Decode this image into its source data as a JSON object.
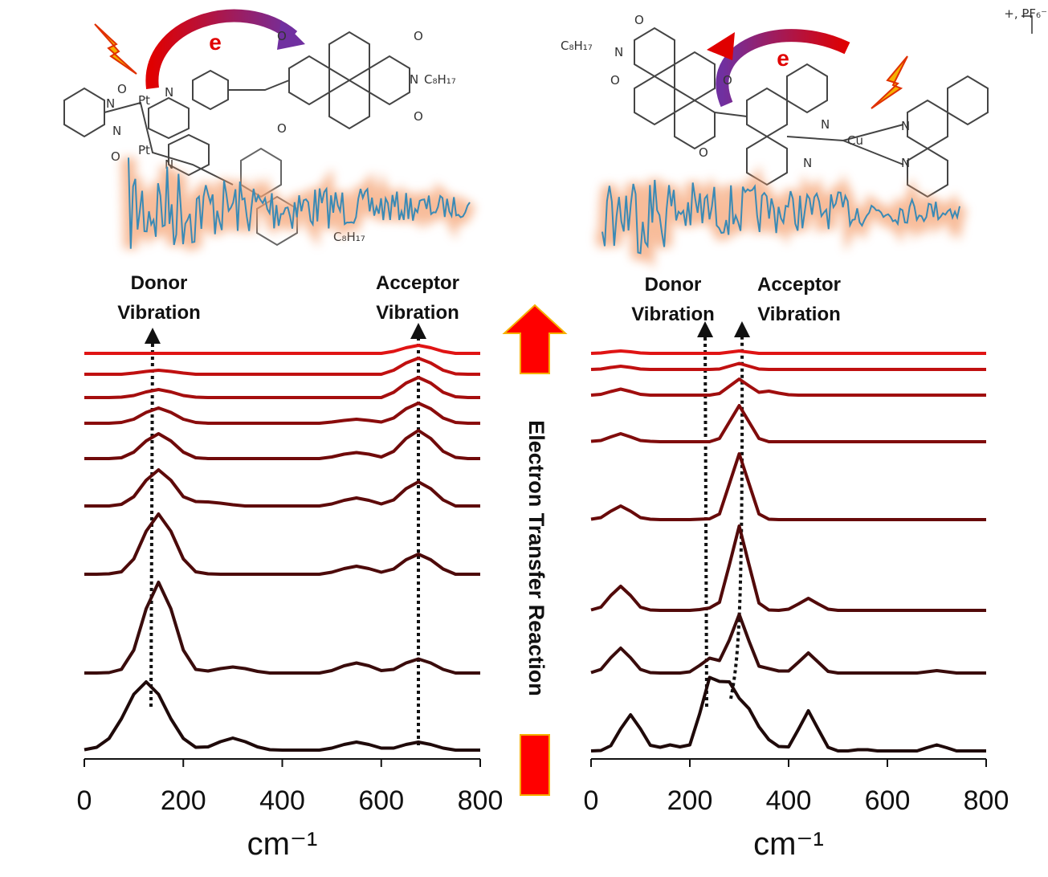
{
  "chart_data": [
    {
      "type": "line",
      "xlabel": "cm⁻¹",
      "xlim": [
        0,
        800
      ],
      "xticks": [
        0,
        200,
        400,
        600,
        800
      ],
      "ylim": [
        0,
        105
      ],
      "annotations": [
        [
          "Donor",
          "Vibration"
        ],
        [
          "Acceptor",
          "Vibration"
        ]
      ],
      "x": [
        0,
        25,
        50,
        75,
        100,
        125,
        150,
        175,
        200,
        225,
        250,
        275,
        300,
        325,
        350,
        375,
        400,
        425,
        450,
        475,
        500,
        525,
        550,
        575,
        600,
        625,
        650,
        675,
        700,
        725,
        750,
        775,
        800
      ],
      "series": [
        {
          "color": "#1f0a0a",
          "values": [
            2.3,
            2.9,
            5.1,
            10.0,
            16.1,
            19.2,
            16.1,
            10.0,
            5.1,
            2.9,
            3.0,
            4.3,
            5.2,
            4.3,
            3.0,
            2.3,
            2.2,
            2.2,
            2.2,
            2.2,
            2.7,
            3.6,
            4.2,
            3.6,
            2.7,
            2.7,
            3.6,
            4.2,
            3.6,
            2.7,
            2.2,
            2.2,
            2.2
          ]
        },
        {
          "color": "#3a0c0c",
          "values": [
            21.4,
            21.4,
            21.5,
            22.3,
            27.1,
            37.4,
            44.0,
            37.4,
            27.1,
            22.3,
            21.9,
            22.5,
            22.9,
            22.5,
            21.8,
            21.4,
            21.4,
            21.4,
            21.4,
            21.4,
            22.0,
            23.2,
            23.9,
            23.2,
            22.0,
            22.3,
            23.9,
            24.9,
            23.9,
            22.3,
            21.4,
            21.4,
            21.4
          ]
        },
        {
          "color": "#4d0a0a",
          "values": [
            46,
            46,
            46.1,
            46.6,
            49.8,
            56.7,
            61,
            56.7,
            49.8,
            46.6,
            46.1,
            46,
            46,
            46,
            46,
            46,
            46,
            46,
            46,
            46,
            46.5,
            47.4,
            48,
            47.4,
            46.5,
            47.3,
            49.6,
            51,
            49.6,
            47.3,
            46,
            46,
            46
          ]
        },
        {
          "color": "#5e0a0a",
          "values": [
            63,
            63,
            63,
            63.4,
            65.3,
            69.4,
            72,
            69.4,
            65.3,
            64.1,
            64,
            63.7,
            63.3,
            63,
            63,
            63,
            63,
            63,
            63,
            63,
            63.5,
            64.4,
            65,
            64.4,
            63.5,
            64.5,
            67.3,
            69,
            67.3,
            64.5,
            63,
            63,
            63
          ]
        },
        {
          "color": "#700a0a",
          "values": [
            74.8,
            74.8,
            74.8,
            75.0,
            76.4,
            79.2,
            81.0,
            79.2,
            76.4,
            75.0,
            74.8,
            74.8,
            74.8,
            74.8,
            74.8,
            74.8,
            74.8,
            74.8,
            74.8,
            74.8,
            75.2,
            75.9,
            76.3,
            75.9,
            75.2,
            76.6,
            79.8,
            81.8,
            79.8,
            76.6,
            75.1,
            74.8,
            74.8
          ]
        },
        {
          "color": "#8a0c0c",
          "values": [
            83.6,
            83.6,
            83.6,
            83.8,
            84.6,
            86.3,
            87.4,
            86.3,
            84.6,
            83.8,
            83.6,
            83.6,
            83.6,
            83.6,
            83.6,
            83.6,
            83.6,
            83.6,
            83.6,
            83.6,
            83.9,
            84.3,
            84.6,
            84.3,
            83.9,
            84.9,
            87.2,
            88.6,
            87.2,
            84.9,
            83.8,
            83.6,
            83.6
          ]
        },
        {
          "color": "#a50e0e",
          "values": [
            90,
            90,
            90,
            90.1,
            90.5,
            91.4,
            92,
            91.4,
            90.5,
            90.1,
            90,
            90,
            90,
            90,
            90,
            90,
            90,
            90,
            90,
            90,
            90,
            90,
            90,
            90,
            90,
            91.3,
            93.6,
            95,
            93.6,
            91.3,
            90.2,
            90,
            90
          ]
        },
        {
          "color": "#c01010",
          "values": [
            95.8,
            95.8,
            95.8,
            95.8,
            96.1,
            96.5,
            96.8,
            96.5,
            96.1,
            95.8,
            95.8,
            95.8,
            95.8,
            95.8,
            95.8,
            95.8,
            95.8,
            95.8,
            95.8,
            95.8,
            95.8,
            95.8,
            95.8,
            95.8,
            95.8,
            96.8,
            98.6,
            99.8,
            98.6,
            96.8,
            95.9,
            95.8,
            95.8
          ]
        },
        {
          "color": "#e01414",
          "values": [
            101,
            101,
            101,
            101,
            101,
            101,
            101,
            101,
            101,
            101,
            101,
            101,
            101,
            101,
            101,
            101,
            101,
            101,
            101,
            101,
            101,
            101,
            101,
            101,
            101,
            101.5,
            102.4,
            103,
            102.4,
            101.5,
            101,
            101,
            101
          ]
        }
      ]
    },
    {
      "type": "line",
      "xlabel": "cm⁻¹",
      "xlim": [
        0,
        800
      ],
      "xticks": [
        0,
        200,
        400,
        600,
        800
      ],
      "ylim": [
        0,
        105
      ],
      "annotations": [
        [
          "Donor",
          "Vibration"
        ],
        [
          "Acceptor",
          "Vibration"
        ]
      ],
      "x": [
        0,
        20,
        40,
        60,
        80,
        100,
        120,
        140,
        160,
        180,
        200,
        220,
        240,
        260,
        280,
        300,
        320,
        340,
        360,
        380,
        400,
        420,
        440,
        460,
        480,
        500,
        520,
        540,
        560,
        580,
        600,
        620,
        640,
        660,
        680,
        700,
        720,
        740,
        760,
        780,
        800
      ],
      "series": [
        {
          "color": "#1f0a0a",
          "values": [
            2,
            2.1,
            3.3,
            7.5,
            11,
            7.5,
            3.4,
            2.9,
            3.5,
            3.0,
            3.5,
            11.3,
            20.3,
            19.3,
            19.2,
            15.1,
            12.5,
            8.0,
            4.8,
            3.1,
            3.0,
            7.4,
            12,
            7.4,
            2.9,
            2,
            2,
            2.3,
            2.3,
            2,
            2,
            2,
            2,
            2,
            2.8,
            3.5,
            2.8,
            2,
            2,
            2,
            2
          ]
        },
        {
          "color": "#3a0c0c",
          "values": [
            21.5,
            22.3,
            25.2,
            27.6,
            25.2,
            22.3,
            21.5,
            21.4,
            21.4,
            21.4,
            21.7,
            23.3,
            25.1,
            24.5,
            29.6,
            36.0,
            29.3,
            23.1,
            22.5,
            21.9,
            21.9,
            24.1,
            26.4,
            24.1,
            21.8,
            21.4,
            21.4,
            21.4,
            21.4,
            21.4,
            21.4,
            21.4,
            21.4,
            21.4,
            21.7,
            22.0,
            21.7,
            21.4,
            21.4,
            21.4,
            21.4
          ]
        },
        {
          "color": "#520a0a",
          "values": [
            37.1,
            37.8,
            40.7,
            43,
            40.7,
            37.8,
            37.1,
            37,
            37,
            37,
            37,
            37.2,
            37.6,
            39.0,
            48.3,
            58,
            48.3,
            38.8,
            37.1,
            37.0,
            37.3,
            38.6,
            40,
            38.6,
            37.3,
            37,
            37,
            37,
            37,
            37,
            37,
            37,
            37,
            37,
            37,
            37,
            37,
            37,
            37,
            37,
            37
          ]
        },
        {
          "color": "#680a0a",
          "values": [
            59.7,
            60.1,
            61.7,
            63.0,
            61.7,
            60.1,
            59.7,
            59.6,
            59.6,
            59.6,
            59.6,
            59.7,
            59.8,
            61.0,
            68.5,
            76.0,
            68.5,
            61.0,
            59.7,
            59.6,
            59.6,
            59.6,
            59.6,
            59.6,
            59.6,
            59.6,
            59.6,
            59.6,
            59.6,
            59.6,
            59.6,
            59.6,
            59.6,
            59.6,
            59.6,
            59.6,
            59.6,
            59.6,
            59.6,
            59.6,
            59.6
          ]
        },
        {
          "color": "#800c0c",
          "values": [
            79.1,
            79.3,
            80.2,
            81,
            80.2,
            79.3,
            79.1,
            79,
            79,
            79,
            79,
            79,
            79,
            79.8,
            83.9,
            88,
            83.9,
            79.8,
            79.0,
            79,
            79,
            79,
            79,
            79,
            79,
            79,
            79,
            79,
            79,
            79,
            79,
            79,
            79,
            79,
            79,
            79,
            79,
            79,
            79,
            79,
            79
          ]
        },
        {
          "color": "#a00e0e",
          "values": [
            90.6,
            90.8,
            91.5,
            92.1,
            91.5,
            90.8,
            90.6,
            90.6,
            90.6,
            90.6,
            90.6,
            90.6,
            90.6,
            91.0,
            92.8,
            94.6,
            92.9,
            91.3,
            91.6,
            91.1,
            90.7,
            90.6,
            90.6,
            90.6,
            90.6,
            90.6,
            90.6,
            90.6,
            90.6,
            90.6,
            90.6,
            90.6,
            90.6,
            90.6,
            90.6,
            90.6,
            90.6,
            90.6,
            90.6,
            90.6,
            90.6
          ]
        },
        {
          "color": "#c01010",
          "values": [
            97,
            97.1,
            97.5,
            97.8,
            97.5,
            97.1,
            97,
            97,
            97,
            97,
            97,
            97,
            97,
            97.1,
            97.8,
            98.5,
            97.8,
            97.1,
            97,
            97,
            97,
            97,
            97,
            97,
            97,
            97,
            97,
            97,
            97,
            97,
            97,
            97,
            97,
            97,
            97,
            97,
            97,
            97,
            97,
            97,
            97
          ]
        },
        {
          "color": "#e01414",
          "values": [
            101,
            101.1,
            101.4,
            101.6,
            101.4,
            101.1,
            101,
            101,
            101,
            101,
            101,
            101,
            101,
            101,
            101.3,
            101.6,
            101.3,
            101,
            101,
            101,
            101,
            101,
            101,
            101,
            101,
            101,
            101,
            101,
            101,
            101,
            101,
            101,
            101,
            101,
            101,
            101,
            101,
            101,
            101,
            101,
            101
          ]
        }
      ]
    }
  ],
  "center_label": "Electron Transfer Reaction",
  "molecules": {
    "left": {
      "electron": "e",
      "atoms": [
        "Pt",
        "Pt",
        "N",
        "N",
        "O",
        "O",
        "N",
        "N",
        "O",
        "O",
        "O",
        "O",
        "N",
        "C₈H₁₇",
        "C₈H₁₇"
      ]
    },
    "right": {
      "electron": "e",
      "atoms": [
        "Cu",
        "N",
        "N",
        "N",
        "N",
        "O",
        "O",
        "O",
        "O",
        "N",
        "C₈H₁₇"
      ],
      "charge": "+, PF₆⁻"
    }
  }
}
